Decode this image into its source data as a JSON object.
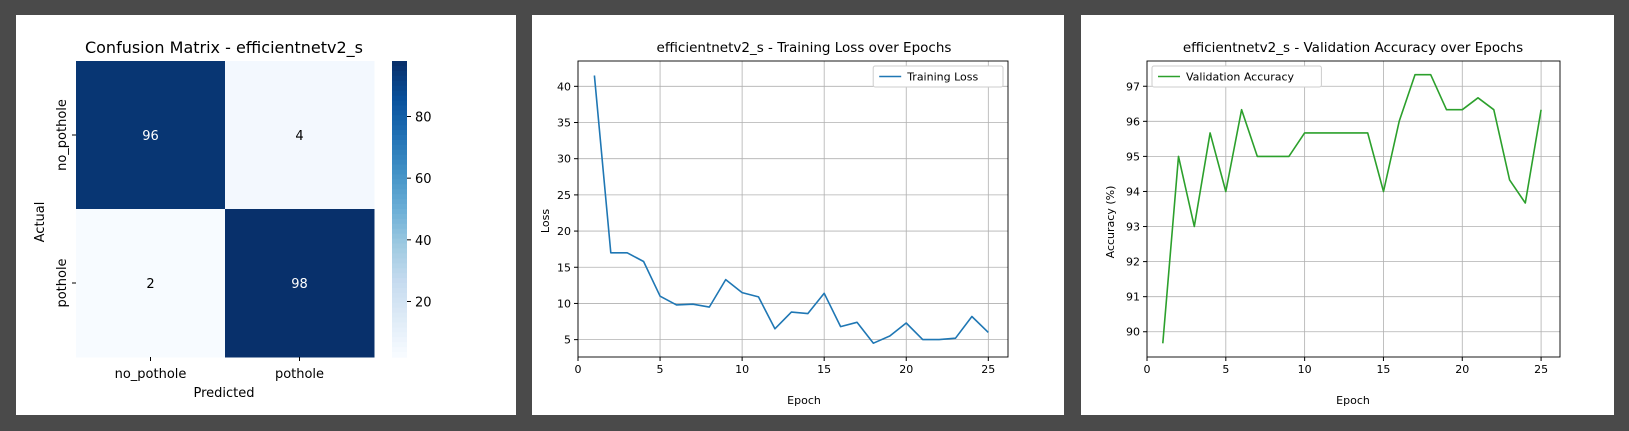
{
  "chart_data": [
    {
      "type": "heatmap",
      "title": "Confusion Matrix - efficientnetv2_s",
      "xlabel": "Predicted",
      "ylabel": "Actual",
      "x_categories": [
        "no_pothole",
        "pothole"
      ],
      "y_categories": [
        "no_pothole",
        "pothole"
      ],
      "values": [
        [
          96,
          4
        ],
        [
          2,
          98
        ]
      ],
      "colormap": "Blues",
      "colorbar": {
        "min": 2,
        "max": 98,
        "ticks": [
          20,
          40,
          60,
          80
        ]
      }
    },
    {
      "type": "line",
      "title": "efficientnetv2_s - Training Loss over Epochs",
      "xlabel": "Epoch",
      "ylabel": "Loss",
      "xlim": [
        0,
        26.2
      ],
      "ylim": [
        2.6,
        43.5
      ],
      "xticks": [
        0,
        5,
        10,
        15,
        20,
        25
      ],
      "yticks": [
        5,
        10,
        15,
        20,
        25,
        30,
        35,
        40
      ],
      "grid": true,
      "legend": "top-right",
      "series": [
        {
          "name": "Training Loss",
          "color": "#1f77b4",
          "x": [
            1,
            2,
            3,
            4,
            5,
            6,
            7,
            8,
            9,
            10,
            11,
            12,
            13,
            14,
            15,
            16,
            17,
            18,
            19,
            20,
            21,
            22,
            23,
            24,
            25
          ],
          "values": [
            41.5,
            17.0,
            17.0,
            15.8,
            11.0,
            9.8,
            9.9,
            9.5,
            13.3,
            11.5,
            10.9,
            6.5,
            8.8,
            8.6,
            11.4,
            6.8,
            7.4,
            4.5,
            5.5,
            7.3,
            5.0,
            5.0,
            5.2,
            8.2,
            6.0
          ]
        }
      ]
    },
    {
      "type": "line",
      "title": "efficientnetv2_s - Validation Accuracy over Epochs",
      "xlabel": "Epoch",
      "ylabel": "Accuracy (%)",
      "xlim": [
        0,
        26.2
      ],
      "ylim": [
        89.28,
        97.72
      ],
      "xticks": [
        0,
        5,
        10,
        15,
        20,
        25
      ],
      "yticks": [
        90,
        91,
        92,
        93,
        94,
        95,
        96,
        97
      ],
      "grid": true,
      "legend": "top-left",
      "series": [
        {
          "name": "Validation Accuracy",
          "color": "#2ca02c",
          "x": [
            1,
            2,
            3,
            4,
            5,
            6,
            7,
            8,
            9,
            10,
            11,
            12,
            13,
            14,
            15,
            16,
            17,
            18,
            19,
            20,
            21,
            22,
            23,
            24,
            25
          ],
          "values": [
            89.67,
            95.0,
            93.0,
            95.67,
            94.0,
            96.33,
            95.0,
            95.0,
            95.0,
            95.67,
            95.67,
            95.67,
            95.67,
            95.67,
            94.0,
            96.0,
            97.33,
            97.33,
            96.33,
            96.33,
            96.67,
            96.33,
            94.33,
            93.67,
            96.33
          ]
        }
      ]
    }
  ]
}
